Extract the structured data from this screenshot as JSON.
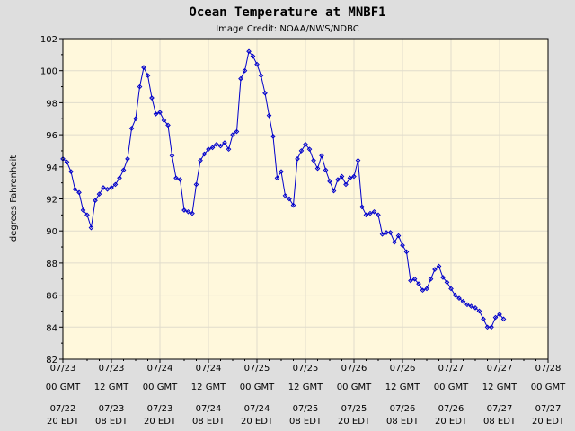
{
  "chart_data": {
    "type": "line",
    "title": "Ocean Temperature at MNBF1",
    "subtitle": "Image Credit: NOAA/NWS/NDBC",
    "ylabel": "degrees Fahrenheit",
    "xlabel": "",
    "ylim": [
      82,
      102
    ],
    "yticks": [
      82,
      84,
      86,
      88,
      90,
      92,
      94,
      96,
      98,
      100,
      102
    ],
    "xlim": [
      0,
      120
    ],
    "xticks": [
      {
        "x": 0,
        "gmt": [
          "07/23",
          "00 GMT"
        ],
        "edt": [
          "07/22",
          "20 EDT"
        ]
      },
      {
        "x": 12,
        "gmt": [
          "07/23",
          "12 GMT"
        ],
        "edt": [
          "07/23",
          "08 EDT"
        ]
      },
      {
        "x": 24,
        "gmt": [
          "07/24",
          "00 GMT"
        ],
        "edt": [
          "07/23",
          "20 EDT"
        ]
      },
      {
        "x": 36,
        "gmt": [
          "07/24",
          "12 GMT"
        ],
        "edt": [
          "07/24",
          "08 EDT"
        ]
      },
      {
        "x": 48,
        "gmt": [
          "07/25",
          "00 GMT"
        ],
        "edt": [
          "07/24",
          "20 EDT"
        ]
      },
      {
        "x": 60,
        "gmt": [
          "07/25",
          "12 GMT"
        ],
        "edt": [
          "07/25",
          "08 EDT"
        ]
      },
      {
        "x": 72,
        "gmt": [
          "07/26",
          "00 GMT"
        ],
        "edt": [
          "07/25",
          "20 EDT"
        ]
      },
      {
        "x": 84,
        "gmt": [
          "07/26",
          "12 GMT"
        ],
        "edt": [
          "07/26",
          "08 EDT"
        ]
      },
      {
        "x": 96,
        "gmt": [
          "07/27",
          "00 GMT"
        ],
        "edt": [
          "07/26",
          "20 EDT"
        ]
      },
      {
        "x": 108,
        "gmt": [
          "07/27",
          "12 GMT"
        ],
        "edt": [
          "07/27",
          "08 EDT"
        ]
      },
      {
        "x": 120,
        "gmt": [
          "07/28",
          "00 GMT"
        ],
        "edt": [
          "07/27",
          "20 EDT"
        ]
      }
    ],
    "grid": true,
    "colors": {
      "line": "#0000cc",
      "plot_bg": "#fff8dc",
      "page_bg": "#dedede",
      "grid": "#e0dccc"
    },
    "series": [
      {
        "x": [
          0,
          1,
          2,
          3,
          4,
          5,
          6,
          7,
          8,
          9,
          10,
          11,
          12,
          13,
          14,
          15,
          16,
          17,
          18,
          19,
          20,
          21,
          22,
          23,
          24,
          25,
          26,
          27,
          28,
          29,
          30,
          31,
          32,
          33,
          34,
          35,
          36,
          37,
          38,
          39,
          40,
          41,
          42,
          43,
          44,
          45,
          46,
          47,
          48,
          49,
          50,
          51,
          52,
          53,
          54,
          55,
          56,
          57,
          58,
          59,
          60,
          61,
          62,
          63,
          64,
          65,
          66,
          67,
          68,
          69,
          70,
          71,
          72,
          73,
          74,
          75,
          76,
          77,
          78,
          79,
          80,
          81,
          82,
          83,
          84,
          85,
          86,
          87,
          88,
          89,
          90,
          91,
          92,
          93,
          94,
          95,
          96,
          97,
          98,
          99,
          100,
          101,
          102,
          103,
          104,
          105,
          106,
          107,
          108,
          109,
          110
        ],
        "values": [
          94.5,
          94.3,
          93.7,
          92.6,
          92.4,
          91.3,
          91.0,
          90.2,
          91.9,
          92.3,
          92.7,
          92.6,
          92.7,
          92.9,
          93.3,
          93.8,
          94.5,
          96.4,
          97.0,
          99.0,
          100.2,
          99.7,
          98.3,
          97.3,
          97.4,
          96.9,
          96.6,
          94.7,
          93.3,
          93.2,
          91.3,
          91.2,
          91.1,
          92.9,
          94.4,
          94.8,
          95.1,
          95.2,
          95.4,
          95.3,
          95.5,
          95.1,
          96.0,
          96.2,
          99.5,
          100.0,
          101.2,
          100.9,
          100.4,
          99.7,
          98.6,
          97.2,
          95.9,
          93.3,
          93.7,
          92.2,
          92.0,
          91.6,
          94.5,
          95.0,
          95.4,
          95.1,
          94.4,
          93.9,
          94.7,
          93.8,
          93.1,
          92.5,
          93.2,
          93.4,
          92.9,
          93.3,
          93.4,
          94.4,
          91.5,
          91.0,
          91.1,
          91.2,
          91.0,
          89.8,
          89.9,
          89.9,
          89.3,
          89.7,
          89.1,
          88.7,
          86.9,
          87.0,
          86.7,
          86.3,
          86.4,
          87.0,
          87.6,
          87.8,
          87.1,
          86.8,
          86.4,
          86.0,
          85.8,
          85.6,
          85.4,
          85.3,
          85.2,
          85.0,
          84.5,
          84.0,
          84.0,
          84.6,
          84.8,
          84.5,
          null
        ]
      }
    ]
  }
}
